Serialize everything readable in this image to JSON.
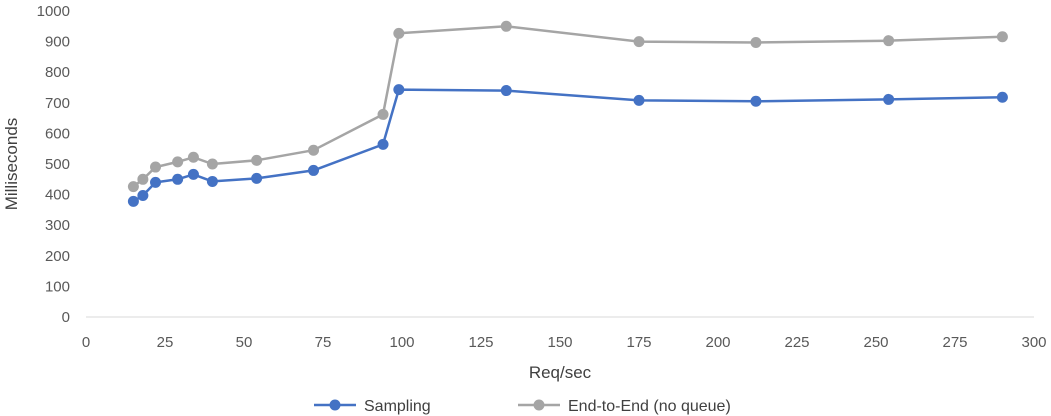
{
  "chart_data": {
    "type": "scatter",
    "title": "",
    "xlabel": "Req/sec",
    "ylabel": "Milliseconds",
    "xlim": [
      0,
      300
    ],
    "ylim": [
      0,
      1000
    ],
    "xticks": [
      0,
      25,
      50,
      75,
      100,
      125,
      150,
      175,
      200,
      225,
      250,
      275,
      300
    ],
    "yticks": [
      0,
      100,
      200,
      300,
      400,
      500,
      600,
      700,
      800,
      900,
      1000
    ],
    "grid": false,
    "legend_position": "bottom",
    "series": [
      {
        "name": "Sampling",
        "color": "#4472C4",
        "points": [
          {
            "x": 15,
            "y": 378
          },
          {
            "x": 18,
            "y": 397
          },
          {
            "x": 22,
            "y": 440
          },
          {
            "x": 29,
            "y": 450
          },
          {
            "x": 34,
            "y": 466
          },
          {
            "x": 40,
            "y": 443
          },
          {
            "x": 54,
            "y": 453
          },
          {
            "x": 72,
            "y": 479
          },
          {
            "x": 94,
            "y": 564
          },
          {
            "x": 99,
            "y": 743
          },
          {
            "x": 133,
            "y": 740
          },
          {
            "x": 175,
            "y": 708
          },
          {
            "x": 212,
            "y": 705
          },
          {
            "x": 254,
            "y": 711
          },
          {
            "x": 290,
            "y": 718
          }
        ]
      },
      {
        "name": "End-to-End (no queue)",
        "color": "#A5A5A5",
        "points": [
          {
            "x": 15,
            "y": 426
          },
          {
            "x": 18,
            "y": 450
          },
          {
            "x": 22,
            "y": 490
          },
          {
            "x": 29,
            "y": 507
          },
          {
            "x": 34,
            "y": 522
          },
          {
            "x": 40,
            "y": 500
          },
          {
            "x": 54,
            "y": 512
          },
          {
            "x": 72,
            "y": 545
          },
          {
            "x": 94,
            "y": 662
          },
          {
            "x": 99,
            "y": 927
          },
          {
            "x": 133,
            "y": 950
          },
          {
            "x": 175,
            "y": 900
          },
          {
            "x": 212,
            "y": 897
          },
          {
            "x": 254,
            "y": 903
          },
          {
            "x": 290,
            "y": 916
          }
        ]
      }
    ]
  }
}
